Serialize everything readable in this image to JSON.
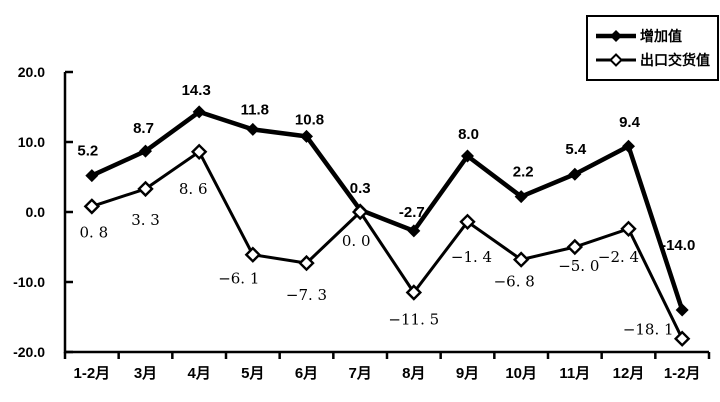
{
  "chart_data": {
    "type": "line",
    "title": "",
    "categories": [
      "1-2月",
      "3月",
      "4月",
      "5月",
      "6月",
      "7月",
      "8月",
      "9月",
      "10月",
      "11月",
      "12月",
      "1-2月"
    ],
    "series": [
      {
        "name": "增加值",
        "marker": "filled-diamond",
        "values": [
          5.2,
          8.7,
          14.3,
          11.8,
          10.8,
          0.3,
          -2.7,
          8.0,
          2.2,
          5.4,
          9.4,
          -14.0
        ],
        "point_labels": [
          "5.2",
          "8.7",
          "14.3",
          "11.8",
          "10.8",
          "0.3",
          "-2.7",
          "8.0",
          "2.2",
          "5.4",
          "9.4",
          "-14.0"
        ]
      },
      {
        "name": "出口交货值",
        "marker": "open-diamond",
        "values": [
          0.8,
          3.3,
          8.6,
          -6.1,
          -7.3,
          0.0,
          -11.5,
          -1.4,
          -6.8,
          -5.0,
          -2.4,
          -18.1
        ],
        "point_labels": [
          "0. 8",
          "3. 3",
          "8. 6",
          "−6. 1",
          "−7. 3",
          "0. 0",
          "−11. 5",
          "−1. 4",
          "−6. 8",
          "−5. 0",
          "−2. 4",
          "−18. 1"
        ]
      }
    ],
    "ylim": [
      -20,
      20
    ],
    "yticks": [
      20,
      10,
      0,
      -10,
      -20
    ],
    "ytick_labels": [
      "20.0",
      "10.0",
      "0.0",
      "-10.0",
      "-20.0"
    ],
    "grid": false,
    "legend_position": "top-right",
    "colors": {
      "series": "#000000",
      "background": "#ffffff"
    }
  }
}
